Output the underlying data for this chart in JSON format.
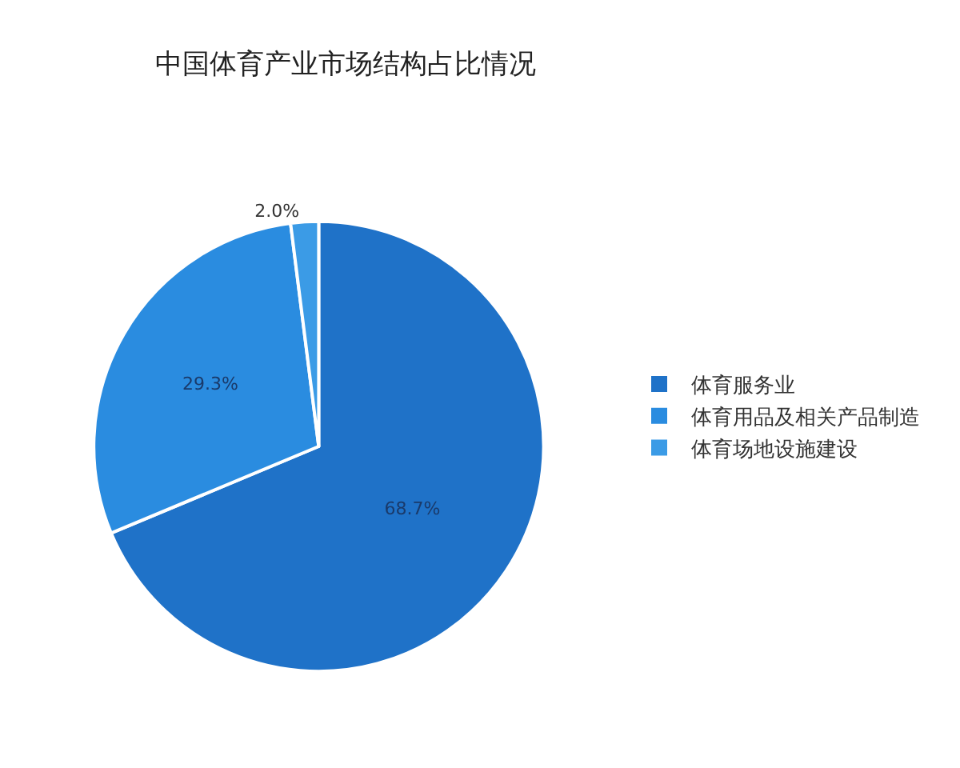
{
  "chart_data": {
    "type": "pie",
    "title": "中国体育产业市场结构占比情况",
    "categories": [
      "体育服务业",
      "体育用品及相关产品制造",
      "体育场地设施建设"
    ],
    "values": [
      68.7,
      29.3,
      2.0
    ],
    "value_labels": [
      "68.7%",
      "29.3%",
      "2.0%"
    ],
    "colors": [
      "#1f72c8",
      "#2a8ce0",
      "#3b9be6"
    ],
    "legend": "right"
  }
}
